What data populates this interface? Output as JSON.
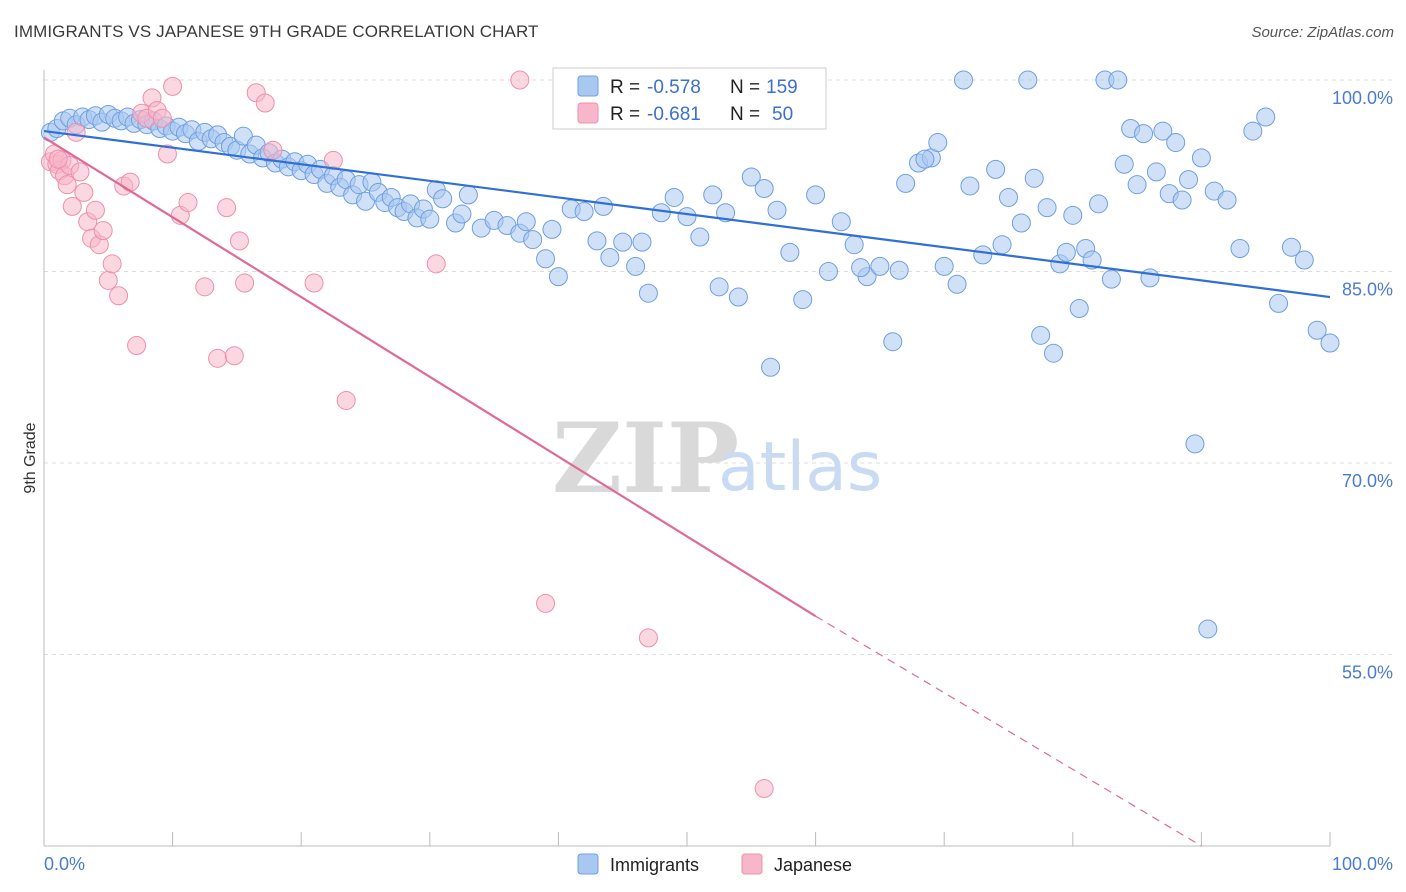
{
  "title": "IMMIGRANTS VS JAPANESE 9TH GRADE CORRELATION CHART",
  "source": "Source: ZipAtlas.com",
  "watermark": {
    "zip": "ZIP",
    "atlas": "atlas"
  },
  "colors": {
    "immigrants_fill": "#a9c8f0",
    "immigrants_stroke": "#6f9fe0",
    "immigrants_line": "#2f6fd6",
    "japanese_fill": "#f7b6c9",
    "japanese_stroke": "#ee8fac",
    "japanese_line": "#e06a94",
    "axis_text": "#4a7bd0",
    "grid": "#dcdcdc"
  },
  "legend": {
    "immigrants": {
      "r_label": "R =",
      "r_value": "-0.578",
      "n_label": "N =",
      "n_value": "159"
    },
    "japanese": {
      "r_label": "R =",
      "r_value": "-0.681",
      "n_label": "N =",
      "n_value": "50"
    }
  },
  "chart_data": {
    "type": "scatter",
    "title": "IMMIGRANTS VS JAPANESE 9TH GRADE CORRELATION CHART",
    "xlabel": "",
    "ylabel": "9th Grade",
    "xlim": [
      0,
      100
    ],
    "ylim": [
      40,
      100
    ],
    "x_tick_labels": [
      "0.0%",
      "100.0%"
    ],
    "y_ticks": [
      100,
      85,
      70,
      55
    ],
    "y_tick_labels": [
      "100.0%",
      "85.0%",
      "70.0%",
      "55.0%"
    ],
    "grid": true,
    "legend_position": "top-center",
    "series": [
      {
        "name": "Immigrants",
        "trend": {
          "x0": 0,
          "y0": 96.0,
          "x1": 100,
          "y1": 83.0
        },
        "points": [
          [
            0.5,
            95.9
          ],
          [
            1,
            96.2
          ],
          [
            1.5,
            96.8
          ],
          [
            2,
            97.0
          ],
          [
            2.5,
            96.5
          ],
          [
            3,
            97.1
          ],
          [
            3.5,
            96.9
          ],
          [
            4,
            97.2
          ],
          [
            4.5,
            96.7
          ],
          [
            5,
            97.3
          ],
          [
            5.5,
            97.0
          ],
          [
            6,
            96.8
          ],
          [
            6.5,
            97.1
          ],
          [
            7,
            96.6
          ],
          [
            7.5,
            96.9
          ],
          [
            8,
            96.5
          ],
          [
            8.5,
            96.8
          ],
          [
            9,
            96.2
          ],
          [
            9.5,
            96.4
          ],
          [
            10,
            96.0
          ],
          [
            10.5,
            96.3
          ],
          [
            11,
            95.8
          ],
          [
            11.5,
            96.1
          ],
          [
            12,
            95.2
          ],
          [
            12.5,
            95.9
          ],
          [
            13,
            95.4
          ],
          [
            13.5,
            95.7
          ],
          [
            14,
            95.1
          ],
          [
            14.5,
            94.8
          ],
          [
            15,
            94.5
          ],
          [
            15.5,
            95.6
          ],
          [
            16,
            94.2
          ],
          [
            16.5,
            94.9
          ],
          [
            17,
            93.9
          ],
          [
            17.5,
            94.3
          ],
          [
            18,
            93.5
          ],
          [
            18.5,
            93.8
          ],
          [
            19,
            93.2
          ],
          [
            19.5,
            93.6
          ],
          [
            20,
            92.9
          ],
          [
            20.5,
            93.4
          ],
          [
            21,
            92.6
          ],
          [
            21.5,
            93.0
          ],
          [
            22,
            91.9
          ],
          [
            22.5,
            92.5
          ],
          [
            23,
            91.6
          ],
          [
            23.5,
            92.2
          ],
          [
            24,
            91.0
          ],
          [
            24.5,
            91.8
          ],
          [
            25,
            90.5
          ],
          [
            25.5,
            92.0
          ],
          [
            26,
            91.2
          ],
          [
            26.5,
            90.4
          ],
          [
            27,
            90.8
          ],
          [
            27.5,
            90.0
          ],
          [
            28,
            89.7
          ],
          [
            28.5,
            90.3
          ],
          [
            29,
            89.2
          ],
          [
            29.5,
            89.9
          ],
          [
            30,
            89.1
          ],
          [
            30.5,
            91.4
          ],
          [
            31,
            90.7
          ],
          [
            32,
            88.8
          ],
          [
            32.5,
            89.5
          ],
          [
            33,
            91.0
          ],
          [
            34,
            88.4
          ],
          [
            35,
            89.0
          ],
          [
            36,
            88.6
          ],
          [
            37,
            88.0
          ],
          [
            38,
            87.5
          ],
          [
            39,
            86.0
          ],
          [
            40,
            84.6
          ],
          [
            41,
            89.9
          ],
          [
            42,
            89.7
          ],
          [
            43,
            87.4
          ],
          [
            44,
            86.1
          ],
          [
            45,
            87.3
          ],
          [
            46,
            85.4
          ],
          [
            47,
            83.3
          ],
          [
            48,
            89.6
          ],
          [
            49,
            90.8
          ],
          [
            50,
            89.3
          ],
          [
            51,
            87.7
          ],
          [
            52,
            91.0
          ],
          [
            53,
            89.6
          ],
          [
            54,
            83.0
          ],
          [
            55,
            92.4
          ],
          [
            56,
            91.5
          ],
          [
            57,
            89.8
          ],
          [
            58,
            86.5
          ],
          [
            59,
            82.8
          ],
          [
            60,
            91.0
          ],
          [
            61,
            85.0
          ],
          [
            62,
            88.9
          ],
          [
            63,
            87.1
          ],
          [
            64,
            84.6
          ],
          [
            65,
            85.4
          ],
          [
            66,
            79.5
          ],
          [
            67,
            91.9
          ],
          [
            68,
            93.5
          ],
          [
            69,
            93.9
          ],
          [
            70,
            85.4
          ],
          [
            71,
            84.0
          ],
          [
            72,
            91.7
          ],
          [
            73,
            86.3
          ],
          [
            74,
            93.0
          ],
          [
            75,
            90.8
          ],
          [
            76,
            88.8
          ],
          [
            77,
            92.3
          ],
          [
            78,
            90.0
          ],
          [
            79,
            85.6
          ],
          [
            80,
            89.4
          ],
          [
            81,
            86.8
          ],
          [
            82,
            90.3
          ],
          [
            83,
            84.4
          ],
          [
            84,
            93.4
          ],
          [
            85,
            91.8
          ],
          [
            86,
            84.5
          ],
          [
            87,
            96.0
          ],
          [
            88,
            95.1
          ],
          [
            89,
            92.2
          ],
          [
            90,
            93.9
          ],
          [
            91,
            91.3
          ],
          [
            92,
            90.6
          ],
          [
            93,
            86.8
          ],
          [
            94,
            96.0
          ],
          [
            95,
            97.1
          ],
          [
            96,
            82.5
          ],
          [
            97,
            86.9
          ],
          [
            98,
            85.9
          ],
          [
            99,
            80.4
          ],
          [
            100,
            79.4
          ],
          [
            37.5,
            88.9
          ],
          [
            39.5,
            88.3
          ],
          [
            43.5,
            90.1
          ],
          [
            46.5,
            87.3
          ],
          [
            52.5,
            83.8
          ],
          [
            56.5,
            77.5
          ],
          [
            63.5,
            85.3
          ],
          [
            66.5,
            85.1
          ],
          [
            68.5,
            93.8
          ],
          [
            69.5,
            95.1
          ],
          [
            71.5,
            100
          ],
          [
            74.5,
            87.1
          ],
          [
            76.5,
            100
          ],
          [
            77.5,
            80.0
          ],
          [
            78.5,
            78.6
          ],
          [
            79.5,
            86.5
          ],
          [
            80.5,
            82.1
          ],
          [
            81.5,
            85.9
          ],
          [
            82.5,
            100
          ],
          [
            83.5,
            100
          ],
          [
            84.5,
            96.2
          ],
          [
            85.5,
            95.8
          ],
          [
            86.5,
            92.8
          ],
          [
            87.5,
            91.1
          ],
          [
            88.5,
            90.6
          ],
          [
            89.5,
            71.5
          ],
          [
            90.5,
            57.0
          ]
        ]
      },
      {
        "name": "Japanese",
        "trend": {
          "x0": 0,
          "y0": 95.5,
          "x1": 60,
          "y1": 58.0,
          "dash_x1": 90,
          "dash_y1": 40.0
        },
        "points": [
          [
            0.5,
            93.6
          ],
          [
            0.8,
            94.2
          ],
          [
            1,
            93.4
          ],
          [
            1.2,
            92.9
          ],
          [
            1.4,
            93.7
          ],
          [
            1.6,
            92.5
          ],
          [
            1.8,
            91.8
          ],
          [
            2,
            93.3
          ],
          [
            2.2,
            90.1
          ],
          [
            2.5,
            95.9
          ],
          [
            2.8,
            92.8
          ],
          [
            3.1,
            91.2
          ],
          [
            3.4,
            88.9
          ],
          [
            3.7,
            87.6
          ],
          [
            4,
            89.8
          ],
          [
            4.3,
            87.1
          ],
          [
            4.6,
            88.2
          ],
          [
            5,
            84.3
          ],
          [
            5.3,
            85.6
          ],
          [
            5.8,
            83.1
          ],
          [
            6.2,
            91.7
          ],
          [
            6.7,
            92.0
          ],
          [
            7.2,
            79.2
          ],
          [
            7.6,
            97.4
          ],
          [
            8,
            97.0
          ],
          [
            8.4,
            98.6
          ],
          [
            8.8,
            97.6
          ],
          [
            9.2,
            97.0
          ],
          [
            9.6,
            94.2
          ],
          [
            10,
            99.5
          ],
          [
            10.6,
            89.4
          ],
          [
            11.2,
            90.4
          ],
          [
            12.5,
            83.8
          ],
          [
            13.5,
            78.2
          ],
          [
            14.2,
            90.0
          ],
          [
            14.8,
            78.4
          ],
          [
            15.2,
            87.4
          ],
          [
            15.6,
            84.1
          ],
          [
            16.5,
            99.0
          ],
          [
            17.2,
            98.2
          ],
          [
            17.8,
            94.5
          ],
          [
            21,
            84.1
          ],
          [
            22.5,
            93.7
          ],
          [
            23.5,
            74.9
          ],
          [
            30.5,
            85.6
          ],
          [
            37,
            100
          ],
          [
            39,
            59.0
          ],
          [
            47,
            56.3
          ],
          [
            56,
            44.5
          ],
          [
            1.1,
            93.8
          ]
        ]
      }
    ]
  },
  "bottom_legend": {
    "immigrants": "Immigrants",
    "japanese": "Japanese"
  }
}
